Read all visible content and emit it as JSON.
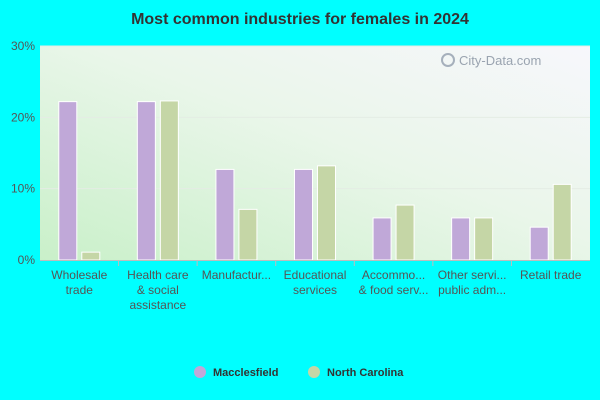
{
  "chart_data": {
    "type": "bar",
    "title": "Most common industries for females in 2024",
    "categories": [
      [
        "Wholesale",
        "trade"
      ],
      [
        "Health care",
        "& social",
        "assistance"
      ],
      [
        "Manufactur..."
      ],
      [
        "Educational",
        "services"
      ],
      [
        "Accommo...",
        "& food serv..."
      ],
      [
        "Other servi...",
        "public adm..."
      ],
      [
        "Retail trade"
      ]
    ],
    "series": [
      {
        "name": "Macclesfield",
        "color": "#c0a8d8",
        "values": [
          22.2,
          22.2,
          12.7,
          12.7,
          5.9,
          5.9,
          4.6
        ]
      },
      {
        "name": "North Carolina",
        "color": "#c5d6a6",
        "values": [
          1.1,
          22.3,
          7.1,
          13.2,
          7.7,
          5.9,
          10.6
        ]
      }
    ],
    "ylim": [
      0,
      30
    ],
    "yticks": [
      "0%",
      "10%",
      "20%",
      "30%"
    ],
    "ytick_values": [
      0,
      10,
      20,
      30
    ],
    "grid": true,
    "legend_position": "bottom-center",
    "watermark": "City-Data.com"
  }
}
